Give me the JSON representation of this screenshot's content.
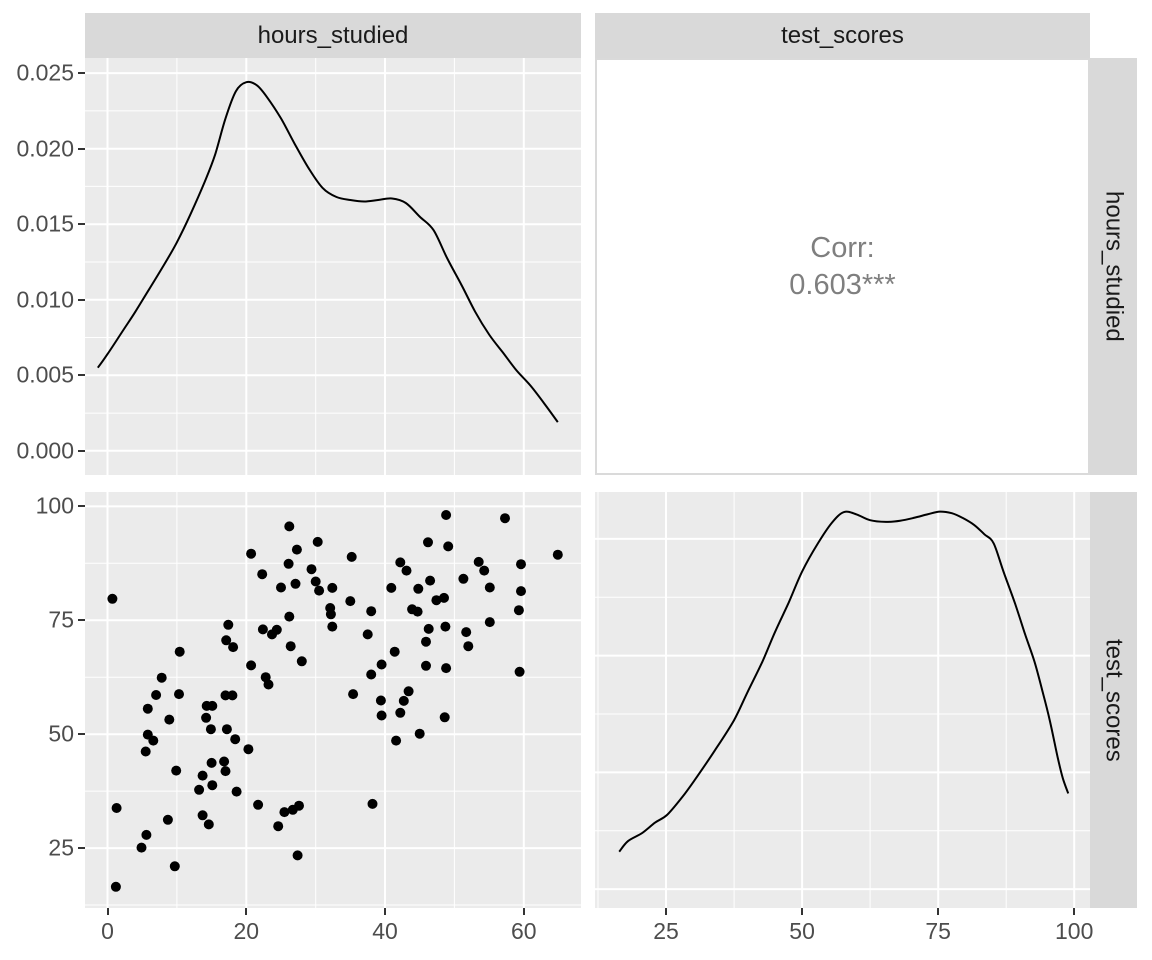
{
  "figure_type": "ggpairs scatterplot matrix",
  "variables": [
    "hours_studied",
    "test_scores"
  ],
  "strips": {
    "top": [
      "hours_studied",
      "test_scores"
    ],
    "right": [
      "hours_studied",
      "test_scores"
    ]
  },
  "corr_panel": {
    "line1": "Corr:",
    "line2": "0.603***"
  },
  "colors": {
    "background": "#FFFFFF",
    "panel_bg": "#EBEBEB",
    "strip_bg": "#D9D9D9",
    "strip_text": "#1A1A1A",
    "grid": "#FFFFFF",
    "axis_text": "#4D4D4D",
    "tick_mark": "#333333",
    "corr_text": "#7F7F7F",
    "corr_border": "#DADADA",
    "point": "#000000",
    "line": "#000000"
  },
  "chart_data": [
    {
      "id": "density_hours",
      "type": "line",
      "title": "density of hours_studied",
      "xlim": [
        -3.25,
        68.25
      ],
      "ylim": [
        -0.0016,
        0.026
      ],
      "x_major": [
        0,
        20,
        40,
        60
      ],
      "x_minor": [
        10,
        30,
        50
      ],
      "y_major": [
        0,
        0.005,
        0.01,
        0.015,
        0.02,
        0.025
      ],
      "y_minor": [
        0.0025,
        0.0075,
        0.0125,
        0.0175,
        0.0225
      ],
      "y_ticks": [
        {
          "v": 0.0,
          "label": "0.000"
        },
        {
          "v": 0.005,
          "label": "0.005"
        },
        {
          "v": 0.01,
          "label": "0.010"
        },
        {
          "v": 0.015,
          "label": "0.015"
        },
        {
          "v": 0.02,
          "label": "0.020"
        },
        {
          "v": 0.025,
          "label": "0.025"
        }
      ],
      "x_ticks": [],
      "x": [
        -1.4,
        0,
        2,
        4,
        6,
        8,
        10,
        12,
        14,
        15.5,
        17,
        18.5,
        20,
        21.5,
        23,
        25,
        27,
        29,
        31,
        33,
        35,
        37,
        39,
        41,
        43,
        45,
        47,
        49,
        51,
        53,
        55,
        57,
        59,
        61,
        63,
        64.9
      ],
      "y": [
        0.0055,
        0.0064,
        0.0078,
        0.0092,
        0.0107,
        0.0122,
        0.0138,
        0.0157,
        0.0178,
        0.0196,
        0.022,
        0.0238,
        0.0244,
        0.0242,
        0.0234,
        0.022,
        0.0203,
        0.0187,
        0.0174,
        0.0168,
        0.0166,
        0.0165,
        0.0166,
        0.0167,
        0.0164,
        0.0155,
        0.0146,
        0.0127,
        0.011,
        0.0092,
        0.0077,
        0.0065,
        0.0053,
        0.0043,
        0.0031,
        0.0019
      ]
    },
    {
      "id": "corr_text",
      "type": "text",
      "value": 0.603,
      "significance": "***",
      "lines": [
        "Corr:",
        "0.603***"
      ]
    },
    {
      "id": "scatter_hours_vs_scores",
      "type": "scatter",
      "xlabel": "hours_studied",
      "ylabel": "test_scores",
      "xlim": [
        -3.25,
        68.25
      ],
      "ylim": [
        11.85,
        103.15
      ],
      "x_major": [
        0,
        20,
        40,
        60
      ],
      "x_minor": [
        10,
        30,
        50
      ],
      "y_major": [
        25,
        50,
        75,
        100
      ],
      "y_minor": [
        12.5,
        37.5,
        62.5,
        87.5
      ],
      "x_ticks": [
        {
          "v": 0,
          "label": "0"
        },
        {
          "v": 20,
          "label": "20"
        },
        {
          "v": 40,
          "label": "40"
        },
        {
          "v": 60,
          "label": "60"
        }
      ],
      "y_ticks": [
        {
          "v": 25,
          "label": "25"
        },
        {
          "v": 50,
          "label": "50"
        },
        {
          "v": 75,
          "label": "75"
        },
        {
          "v": 100,
          "label": "100"
        }
      ],
      "points": [
        [
          0.7,
          79.7
        ],
        [
          20.7,
          89.6
        ],
        [
          26.2,
          95.6
        ],
        [
          22.3,
          85.1
        ],
        [
          25,
          82.2
        ],
        [
          27.1,
          83
        ],
        [
          27.3,
          90.5
        ],
        [
          26.1,
          87.4
        ],
        [
          30.3,
          92.2
        ],
        [
          29.4,
          86.2
        ],
        [
          30,
          83.5
        ],
        [
          30.5,
          81.5
        ],
        [
          26.2,
          75.8
        ],
        [
          32.1,
          77.7
        ],
        [
          32.2,
          76.3
        ],
        [
          17.4,
          74
        ],
        [
          22.4,
          73
        ],
        [
          23.7,
          71.9
        ],
        [
          24.4,
          72.9
        ],
        [
          17.1,
          70.6
        ],
        [
          18.1,
          69.1
        ],
        [
          20.7,
          65.1
        ],
        [
          10.4,
          68.1
        ],
        [
          7.8,
          62.4
        ],
        [
          22.8,
          62.5
        ],
        [
          23.2,
          60.9
        ],
        [
          7,
          58.6
        ],
        [
          10.3,
          58.8
        ],
        [
          17,
          58.5
        ],
        [
          18,
          58.5
        ],
        [
          26.4,
          69.3
        ],
        [
          28,
          66
        ],
        [
          5.8,
          55.6
        ],
        [
          14.3,
          56.2
        ],
        [
          15.1,
          56.2
        ],
        [
          8.9,
          53.2
        ],
        [
          14.2,
          53.6
        ],
        [
          14.9,
          51.1
        ],
        [
          17.2,
          51.1
        ],
        [
          5.8,
          49.9
        ],
        [
          6.6,
          48.6
        ],
        [
          5.5,
          46.2
        ],
        [
          18.4,
          48.9
        ],
        [
          20.3,
          46.7
        ],
        [
          9.9,
          42
        ],
        [
          15,
          43.7
        ],
        [
          16.8,
          44
        ],
        [
          17,
          41.9
        ],
        [
          13.7,
          40.9
        ],
        [
          15.1,
          38.8
        ],
        [
          13.2,
          37.8
        ],
        [
          18.6,
          37.4
        ],
        [
          21.7,
          34.5
        ],
        [
          1.3,
          33.8
        ],
        [
          25.5,
          32.9
        ],
        [
          26.7,
          33.4
        ],
        [
          27.6,
          34.3
        ],
        [
          8.7,
          31.2
        ],
        [
          13.7,
          32.2
        ],
        [
          14.6,
          30.2
        ],
        [
          24.6,
          29.8
        ],
        [
          5.6,
          27.9
        ],
        [
          4.9,
          25.1
        ],
        [
          27.4,
          23.4
        ],
        [
          9.7,
          21
        ],
        [
          1.2,
          16.5
        ],
        [
          48.8,
          98.1
        ],
        [
          57.3,
          97.4
        ],
        [
          46.2,
          92.1
        ],
        [
          49.1,
          91.2
        ],
        [
          35.2,
          88.9
        ],
        [
          64.9,
          89.4
        ],
        [
          42.2,
          87.7
        ],
        [
          43.1,
          85.9
        ],
        [
          53.5,
          87.8
        ],
        [
          54.3,
          85.9
        ],
        [
          59.6,
          87.3
        ],
        [
          51.3,
          84.1
        ],
        [
          46.5,
          83.7
        ],
        [
          40.9,
          82.1
        ],
        [
          44.8,
          81.9
        ],
        [
          32.4,
          82.1
        ],
        [
          47.4,
          79.4
        ],
        [
          48.5,
          79.9
        ],
        [
          43.9,
          77.4
        ],
        [
          44.7,
          76.9
        ],
        [
          38,
          77
        ],
        [
          59.6,
          81.4
        ],
        [
          59.3,
          77.2
        ],
        [
          55.1,
          74.6
        ],
        [
          51.7,
          72.4
        ],
        [
          46.3,
          73.1
        ],
        [
          55.1,
          82.2
        ],
        [
          35,
          79.2
        ],
        [
          32.4,
          73.6
        ],
        [
          37.5,
          71.9
        ],
        [
          39.5,
          65.3
        ],
        [
          52,
          69.3
        ],
        [
          48.8,
          64.5
        ],
        [
          38,
          63.1
        ],
        [
          59.4,
          63.7
        ],
        [
          43.4,
          59.4
        ],
        [
          35.4,
          58.8
        ],
        [
          39.4,
          57.4
        ],
        [
          41.4,
          68.1
        ],
        [
          45.9,
          70.3
        ],
        [
          48.7,
          73.6
        ],
        [
          45.9,
          65
        ],
        [
          42.7,
          57.3
        ],
        [
          39.5,
          54.1
        ],
        [
          42.2,
          54.7
        ],
        [
          48.6,
          53.7
        ],
        [
          45,
          50.1
        ],
        [
          41.6,
          48.6
        ],
        [
          38.2,
          34.7
        ]
      ]
    },
    {
      "id": "density_scores",
      "type": "line",
      "title": "density of test_scores",
      "xlim": [
        11.95,
        102.9
      ],
      "ylim": [
        -0.00081,
        0.01701
      ],
      "x_major": [
        25,
        50,
        75,
        100
      ],
      "x_minor": [
        12.5,
        37.5,
        62.5,
        87.5
      ],
      "y_major": [
        0,
        0.005,
        0.01,
        0.015
      ],
      "y_minor": [
        0.0025,
        0.0075,
        0.0125
      ],
      "x_ticks": [
        {
          "v": 25,
          "label": "25"
        },
        {
          "v": 50,
          "label": "50"
        },
        {
          "v": 75,
          "label": "75"
        },
        {
          "v": 100,
          "label": "100"
        }
      ],
      "y_ticks": [],
      "x": [
        16.4,
        18,
        20.6,
        23,
        25.2,
        28,
        30.5,
        34,
        37.5,
        40,
        42.7,
        45,
        47.5,
        50,
        52.9,
        55.5,
        57.7,
        60,
        62.5,
        65.4,
        68,
        70.5,
        73,
        75.3,
        77.5,
        79.5,
        81.6,
        83.5,
        85.2,
        87,
        89.1,
        91,
        92.7,
        94.2,
        95.5,
        97,
        97.9,
        98.9
      ],
      "y": [
        0.0016,
        0.00205,
        0.0024,
        0.00285,
        0.00318,
        0.00395,
        0.00475,
        0.00595,
        0.00724,
        0.00845,
        0.00974,
        0.011,
        0.01225,
        0.0136,
        0.01481,
        0.0157,
        0.01615,
        0.01605,
        0.0158,
        0.01573,
        0.01578,
        0.0159,
        0.01605,
        0.01617,
        0.0161,
        0.0159,
        0.0156,
        0.0152,
        0.01481,
        0.0136,
        0.01225,
        0.0109,
        0.00974,
        0.00845,
        0.00724,
        0.0056,
        0.00475,
        0.0041
      ]
    }
  ]
}
